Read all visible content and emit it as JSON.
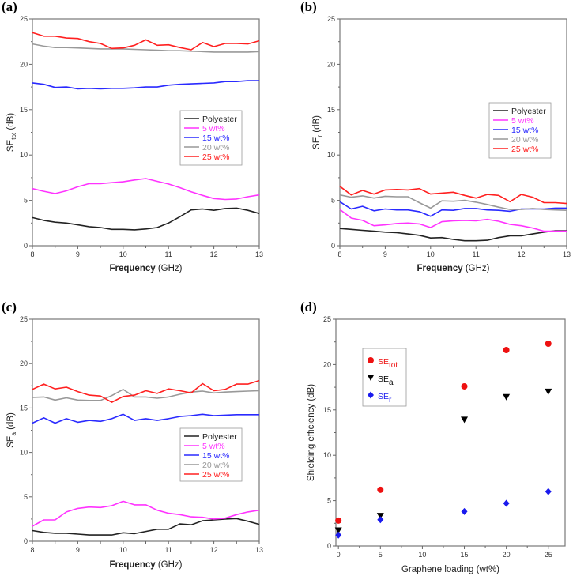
{
  "chart_data": [
    {
      "panel_label": "(a)",
      "type": "line",
      "xlabel": {
        "main": "Frequency",
        "unit": "(GHz)"
      },
      "ylabel": {
        "main": "SE",
        "sub": "tot",
        "unit": "(dB)"
      },
      "xlim": [
        8,
        13
      ],
      "ylim": [
        0,
        25
      ],
      "xticks": [
        8,
        9,
        10,
        11,
        12,
        13
      ],
      "yticks": [
        0,
        5,
        10,
        15,
        20,
        25
      ],
      "legend_position": "center-right",
      "x": [
        8,
        8.25,
        8.5,
        8.75,
        9,
        9.25,
        9.5,
        9.75,
        10,
        10.25,
        10.5,
        10.75,
        11,
        11.25,
        11.5,
        11.75,
        12,
        12.25,
        12.5,
        12.75,
        13
      ],
      "series": [
        {
          "name": "Polyester",
          "color": "#222222",
          "values": [
            3.1,
            2.8,
            2.6,
            2.5,
            2.3,
            2.1,
            2.0,
            1.8,
            1.8,
            1.75,
            1.85,
            2.0,
            2.5,
            3.2,
            3.95,
            4.05,
            3.9,
            4.1,
            4.15,
            3.9,
            3.55
          ]
        },
        {
          "name": "5 wt%",
          "color": "#ff33ff",
          "values": [
            6.3,
            6.0,
            5.75,
            6.05,
            6.5,
            6.85,
            6.85,
            6.95,
            7.05,
            7.25,
            7.4,
            7.1,
            6.8,
            6.4,
            5.95,
            5.55,
            5.2,
            5.1,
            5.15,
            5.4,
            5.6
          ]
        },
        {
          "name": "15 wt%",
          "color": "#2a2aff",
          "values": [
            17.95,
            17.8,
            17.45,
            17.5,
            17.3,
            17.35,
            17.3,
            17.35,
            17.35,
            17.4,
            17.5,
            17.5,
            17.7,
            17.8,
            17.85,
            17.9,
            17.95,
            18.1,
            18.1,
            18.2,
            18.2
          ]
        },
        {
          "name": "20 wt%",
          "color": "#999999",
          "values": [
            22.25,
            22.0,
            21.85,
            21.85,
            21.8,
            21.75,
            21.7,
            21.7,
            21.7,
            21.65,
            21.6,
            21.55,
            21.5,
            21.5,
            21.45,
            21.4,
            21.35,
            21.35,
            21.35,
            21.35,
            21.4
          ]
        },
        {
          "name": "25 wt%",
          "color": "#ff2020",
          "values": [
            23.5,
            23.1,
            23.1,
            22.9,
            22.85,
            22.5,
            22.3,
            21.75,
            21.8,
            22.1,
            22.7,
            22.1,
            22.15,
            21.85,
            21.6,
            22.4,
            21.95,
            22.3,
            22.3,
            22.25,
            22.6
          ]
        }
      ]
    },
    {
      "panel_label": "(b)",
      "type": "line",
      "xlabel": {
        "main": "Frequency",
        "unit": "(GHz)"
      },
      "ylabel": {
        "main": "SE",
        "sub": "r",
        "unit": "(dB)"
      },
      "xlim": [
        8,
        13
      ],
      "ylim": [
        0,
        25
      ],
      "xticks": [
        8,
        9,
        10,
        11,
        12,
        13
      ],
      "yticks": [
        0,
        5,
        10,
        15,
        20,
        25
      ],
      "legend_position": "center-right",
      "x": [
        8,
        8.25,
        8.5,
        8.75,
        9,
        9.25,
        9.5,
        9.75,
        10,
        10.25,
        10.5,
        10.75,
        11,
        11.25,
        11.5,
        11.75,
        12,
        12.25,
        12.5,
        12.75,
        13
      ],
      "series": [
        {
          "name": "Polyester",
          "color": "#222222",
          "values": [
            1.9,
            1.8,
            1.7,
            1.6,
            1.5,
            1.45,
            1.3,
            1.15,
            0.85,
            0.9,
            0.7,
            0.55,
            0.55,
            0.6,
            0.9,
            1.1,
            1.1,
            1.3,
            1.5,
            1.65,
            1.65
          ]
        },
        {
          "name": "5 wt%",
          "color": "#ff33ff",
          "values": [
            4.0,
            3.05,
            2.8,
            2.2,
            2.3,
            2.45,
            2.5,
            2.4,
            2.0,
            2.65,
            2.75,
            2.8,
            2.75,
            2.9,
            2.7,
            2.35,
            2.2,
            1.95,
            1.6,
            1.6,
            1.6
          ]
        },
        {
          "name": "15 wt%",
          "color": "#2a2aff",
          "values": [
            4.85,
            4.05,
            4.35,
            3.85,
            4.05,
            3.95,
            3.95,
            3.75,
            3.25,
            3.95,
            3.9,
            4.1,
            4.1,
            3.95,
            3.9,
            3.8,
            4.05,
            4.05,
            4.05,
            4.15,
            4.15
          ]
        },
        {
          "name": "20 wt%",
          "color": "#999999",
          "values": [
            5.6,
            5.35,
            5.5,
            5.25,
            5.45,
            5.4,
            5.4,
            4.75,
            4.15,
            4.95,
            4.9,
            5.0,
            4.8,
            4.55,
            4.25,
            4.0,
            4.0,
            4.1,
            4.0,
            3.95,
            3.9
          ]
        },
        {
          "name": "25 wt%",
          "color": "#ff2020",
          "values": [
            6.55,
            5.6,
            6.1,
            5.7,
            6.15,
            6.2,
            6.15,
            6.3,
            5.7,
            5.8,
            5.9,
            5.55,
            5.25,
            5.65,
            5.55,
            4.85,
            5.65,
            5.35,
            4.75,
            4.75,
            4.65
          ]
        }
      ]
    },
    {
      "panel_label": "(c)",
      "type": "line",
      "xlabel": {
        "main": "Frequency",
        "unit": "(GHz)"
      },
      "ylabel": {
        "main": "SE",
        "sub": "a",
        "unit": "(dB)"
      },
      "xlim": [
        8,
        13
      ],
      "ylim": [
        0,
        25
      ],
      "xticks": [
        8,
        9,
        10,
        11,
        12,
        13
      ],
      "yticks": [
        0,
        5,
        10,
        15,
        20,
        25
      ],
      "legend_position": "center-right",
      "x": [
        8,
        8.25,
        8.5,
        8.75,
        9,
        9.25,
        9.5,
        9.75,
        10,
        10.25,
        10.5,
        10.75,
        11,
        11.25,
        11.5,
        11.75,
        12,
        12.25,
        12.5,
        12.75,
        13
      ],
      "series": [
        {
          "name": "Polyester",
          "color": "#222222",
          "values": [
            1.2,
            1.0,
            0.9,
            0.9,
            0.8,
            0.7,
            0.7,
            0.7,
            0.95,
            0.85,
            1.1,
            1.35,
            1.35,
            1.95,
            1.85,
            2.3,
            2.4,
            2.5,
            2.55,
            2.25,
            1.9
          ]
        },
        {
          "name": "5 wt%",
          "color": "#ff33ff",
          "values": [
            1.7,
            2.4,
            2.4,
            3.3,
            3.7,
            3.85,
            3.8,
            4.0,
            4.5,
            4.1,
            4.1,
            3.5,
            3.15,
            3.0,
            2.75,
            2.7,
            2.5,
            2.6,
            3.0,
            3.3,
            3.5
          ]
        },
        {
          "name": "15 wt%",
          "color": "#2a2aff",
          "values": [
            13.3,
            13.9,
            13.3,
            13.8,
            13.4,
            13.6,
            13.5,
            13.8,
            14.3,
            13.6,
            13.8,
            13.6,
            13.8,
            14.05,
            14.15,
            14.3,
            14.15,
            14.2,
            14.25,
            14.25,
            14.25
          ]
        },
        {
          "name": "20 wt%",
          "color": "#999999",
          "values": [
            16.2,
            16.25,
            15.9,
            16.15,
            15.9,
            15.85,
            15.85,
            16.4,
            17.1,
            16.25,
            16.25,
            16.1,
            16.25,
            16.55,
            16.8,
            16.9,
            16.7,
            16.8,
            16.85,
            16.9,
            16.95
          ]
        },
        {
          "name": "25 wt%",
          "color": "#ff2020",
          "values": [
            17.1,
            17.7,
            17.15,
            17.35,
            16.85,
            16.45,
            16.35,
            15.65,
            16.3,
            16.45,
            16.95,
            16.65,
            17.15,
            16.95,
            16.7,
            17.75,
            16.95,
            17.1,
            17.7,
            17.7,
            18.1
          ]
        }
      ]
    },
    {
      "panel_label": "(d)",
      "type": "scatter",
      "xlabel": {
        "main": "Graphene loading",
        "unit": "(wt%)"
      },
      "ylabel": {
        "main": "Shielding efficiency",
        "sub": "",
        "unit": "(dB)"
      },
      "xlim": [
        -0.3,
        27
      ],
      "ylim": [
        0,
        25
      ],
      "xticks": [
        0,
        5,
        10,
        15,
        20,
        25
      ],
      "yticks": [
        0,
        5,
        10,
        15,
        20,
        25
      ],
      "legend_position": "top-left",
      "x": [
        0,
        5,
        15,
        20,
        25
      ],
      "series": [
        {
          "name": "SE",
          "sub": "tot",
          "marker": "circle",
          "color": "#ee1111",
          "values": [
            2.8,
            6.2,
            17.6,
            21.6,
            22.3
          ]
        },
        {
          "name": "SE",
          "sub": "a",
          "marker": "triangle-down",
          "color": "#000000",
          "values": [
            1.7,
            3.3,
            13.9,
            16.4,
            17.0
          ]
        },
        {
          "name": "SE",
          "sub": "r",
          "marker": "diamond",
          "color": "#1a1aee",
          "values": [
            1.2,
            2.9,
            3.8,
            4.7,
            6.0
          ]
        }
      ]
    }
  ]
}
